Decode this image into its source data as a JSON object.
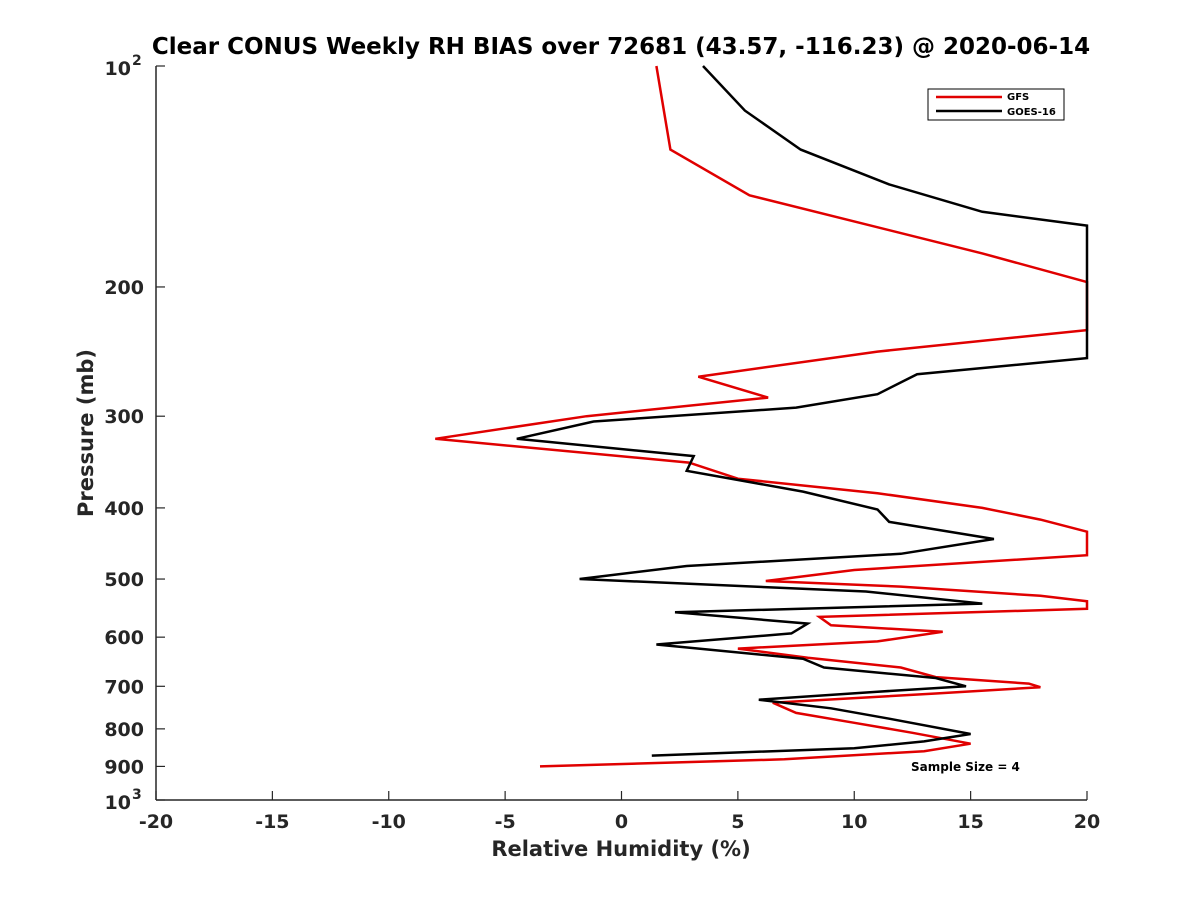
{
  "chart_data": {
    "type": "line",
    "title": "Clear CONUS Weekly RH BIAS over 72681 (43.57, -116.23) @ 2020-06-14",
    "xlabel": "Relative Humidity (%)",
    "ylabel": "Pressure (mb)",
    "xlim": [
      -20,
      20
    ],
    "ylim": [
      100,
      1000
    ],
    "y_scale": "log",
    "y_reversed": true,
    "grid": false,
    "legend_position": "top-right",
    "x_ticks": [
      "-20",
      "-15",
      "-10",
      "-5",
      "0",
      "5",
      "10",
      "15",
      "20"
    ],
    "x_tick_values": [
      -20,
      -15,
      -10,
      -5,
      0,
      5,
      10,
      15,
      20
    ],
    "y_ticks": [
      {
        "value": 100,
        "base": "10",
        "exp": "2"
      },
      {
        "value": 200,
        "label": "200"
      },
      {
        "value": 300,
        "label": "300"
      },
      {
        "value": 400,
        "label": "400"
      },
      {
        "value": 500,
        "label": "500"
      },
      {
        "value": 600,
        "label": "600"
      },
      {
        "value": 700,
        "label": "700"
      },
      {
        "value": 800,
        "label": "800"
      },
      {
        "value": 900,
        "label": "900"
      },
      {
        "value": 1000,
        "base": "10",
        "exp": "3"
      }
    ],
    "annotation": "Sample Size = 4",
    "series": [
      {
        "name": "GFS",
        "color": "#e00000",
        "points": [
          [
            1.5,
            100
          ],
          [
            2.1,
            130
          ],
          [
            5.5,
            150
          ],
          [
            15.5,
            180
          ],
          [
            20,
            197
          ],
          [
            20,
            229
          ],
          [
            11,
            245
          ],
          [
            3.3,
            265
          ],
          [
            6.3,
            283
          ],
          [
            -1.5,
            300
          ],
          [
            -8,
            322
          ],
          [
            2.9,
            347
          ],
          [
            5,
            365
          ],
          [
            11,
            382
          ],
          [
            15.5,
            400
          ],
          [
            18,
            415
          ],
          [
            20,
            431
          ],
          [
            20,
            464
          ],
          [
            10,
            486
          ],
          [
            6.2,
            503
          ],
          [
            12,
            512
          ],
          [
            18,
            527
          ],
          [
            20,
            536
          ],
          [
            20,
            549
          ],
          [
            8.5,
            563
          ],
          [
            9,
            578
          ],
          [
            13.8,
            590
          ],
          [
            11,
            608
          ],
          [
            5,
            622
          ],
          [
            8,
            640
          ],
          [
            12,
            660
          ],
          [
            13.5,
            680
          ],
          [
            17.5,
            694
          ],
          [
            18,
            702
          ],
          [
            13.5,
            716
          ],
          [
            6.5,
            737
          ],
          [
            7.5,
            761
          ],
          [
            10,
            785
          ],
          [
            12.5,
            810
          ],
          [
            15,
            838
          ],
          [
            13,
            858
          ],
          [
            7,
            880
          ],
          [
            -3.5,
            900
          ]
        ]
      },
      {
        "name": "GOES-16",
        "color": "#000000",
        "points": [
          [
            3.5,
            100
          ],
          [
            5.3,
            115
          ],
          [
            7.7,
            130
          ],
          [
            11.5,
            145
          ],
          [
            15.5,
            158
          ],
          [
            20,
            165
          ],
          [
            20,
            250
          ],
          [
            12.7,
            263
          ],
          [
            11,
            280
          ],
          [
            7.5,
            292
          ],
          [
            -1.2,
            305
          ],
          [
            -4.5,
            322
          ],
          [
            3.1,
            340
          ],
          [
            2.8,
            356
          ],
          [
            7.8,
            380
          ],
          [
            11,
            402
          ],
          [
            11.5,
            418
          ],
          [
            16,
            441
          ],
          [
            12,
            462
          ],
          [
            2.8,
            480
          ],
          [
            -1.8,
            500
          ],
          [
            10.5,
            520
          ],
          [
            15.5,
            540
          ],
          [
            2.3,
            555
          ],
          [
            8,
            575
          ],
          [
            7.3,
            593
          ],
          [
            1.5,
            614
          ],
          [
            7.8,
            642
          ],
          [
            8.7,
            660
          ],
          [
            13.5,
            682
          ],
          [
            14.8,
            700
          ],
          [
            11,
            712
          ],
          [
            5.9,
            730
          ],
          [
            9,
            750
          ],
          [
            11.5,
            775
          ],
          [
            15,
            813
          ],
          [
            13,
            832
          ],
          [
            10,
            850
          ],
          [
            1.3,
            870
          ]
        ]
      }
    ]
  }
}
